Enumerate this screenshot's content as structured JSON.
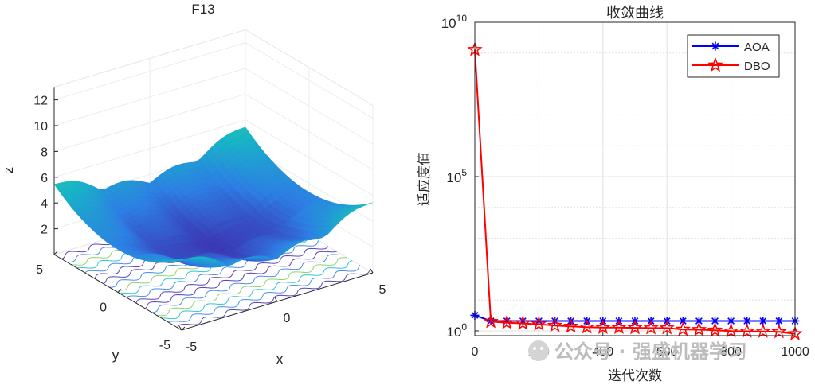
{
  "chart_data": [
    {
      "type": "surface3d",
      "title": "F13",
      "xlabel": "x",
      "ylabel": "y",
      "zlabel": "z",
      "x_ticks": [
        "-5",
        "0",
        "5"
      ],
      "y_ticks": [
        "-5",
        "0",
        "5"
      ],
      "z_ticks": [
        "2",
        "4",
        "6",
        "8",
        "10",
        "12"
      ],
      "xlim": [
        -5,
        5
      ],
      "ylim": [
        -5,
        5
      ],
      "zlim": [
        0,
        13
      ],
      "colormap": "parula",
      "contour_projection": true
    },
    {
      "type": "line",
      "title": "收敛曲线",
      "xlabel": "迭代次数",
      "ylabel": "适应度值",
      "yscale": "log",
      "xlim": [
        0,
        1000
      ],
      "ylim": [
        0.7,
        10000000000
      ],
      "x_ticks": [
        "0",
        "200",
        "400",
        "600",
        "800",
        "1000"
      ],
      "y_ticks": [
        {
          "value": 1,
          "base": "10",
          "exp": "0"
        },
        {
          "value": 100000,
          "base": "10",
          "exp": "5"
        },
        {
          "value": 10000000000,
          "base": "10",
          "exp": "10"
        }
      ],
      "legend_position": "top-right",
      "series": [
        {
          "name": "AOA",
          "color": "#0000ff",
          "marker": "asterisk",
          "x": [
            0,
            50,
            100,
            150,
            200,
            250,
            300,
            350,
            400,
            450,
            500,
            550,
            600,
            650,
            700,
            750,
            800,
            850,
            900,
            950,
            1000
          ],
          "y": [
            3.2,
            2.1,
            2.1,
            2.1,
            2.1,
            2.1,
            2.1,
            2.1,
            2.1,
            2.1,
            2.1,
            2.1,
            2.1,
            2.1,
            2.1,
            2.1,
            2.1,
            2.1,
            2.1,
            2.1,
            2.1
          ]
        },
        {
          "name": "DBO",
          "color": "#ff0000",
          "marker": "pentagram",
          "x": [
            0,
            50,
            100,
            150,
            200,
            250,
            300,
            350,
            400,
            450,
            500,
            550,
            600,
            650,
            700,
            750,
            800,
            850,
            900,
            950,
            1000
          ],
          "y": [
            1300000000,
            2.0,
            1.85,
            1.75,
            1.65,
            1.5,
            1.4,
            1.32,
            1.28,
            1.28,
            1.26,
            1.24,
            1.24,
            1.12,
            1.1,
            1.05,
            0.98,
            0.97,
            0.96,
            0.93,
            0.8
          ]
        }
      ]
    }
  ],
  "watermark": "公众号 · 强盛机器学习"
}
